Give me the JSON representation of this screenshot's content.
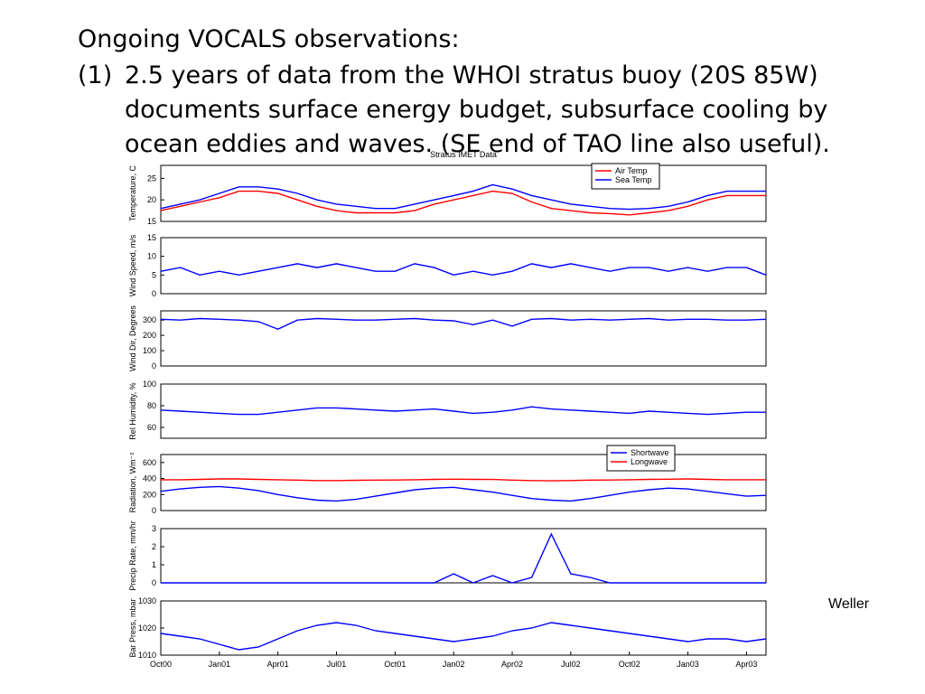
{
  "slide": {
    "heading": "Ongoing VOCALS observations:",
    "item_marker": "(1)",
    "item_lines": [
      "2.5 years of data from the WHOI stratus buoy (20S 85W)",
      "documents surface energy budget, subsurface cooling by",
      "ocean eddies and waves. (SE end of TAO line also useful)."
    ],
    "credit": "Weller"
  },
  "chart_data": [
    {
      "type": "line",
      "title": "Stratus IMET Data",
      "ylabel": "Temperature, C",
      "ylim": [
        15,
        28
      ],
      "yticks": [
        15,
        20,
        25
      ],
      "legend": "upper right",
      "x": [
        "2000-10",
        "2000-11",
        "2000-12",
        "2001-01",
        "2001-02",
        "2001-03",
        "2001-04",
        "2001-05",
        "2001-06",
        "2001-07",
        "2001-08",
        "2001-09",
        "2001-10",
        "2001-11",
        "2001-12",
        "2002-01",
        "2002-02",
        "2002-03",
        "2002-04",
        "2002-05",
        "2002-06",
        "2002-07",
        "2002-08",
        "2002-09",
        "2002-10",
        "2002-11",
        "2002-12",
        "2003-01",
        "2003-02",
        "2003-03",
        "2003-04",
        "2003-05"
      ],
      "xlim": [
        "2000-10",
        "2003-05"
      ],
      "series": [
        {
          "name": "Air Temp",
          "color": "#ff0000",
          "values": [
            17.5,
            18.5,
            19.5,
            20.5,
            22,
            22,
            21.5,
            20,
            18.5,
            17.5,
            17,
            17,
            17,
            17.5,
            19,
            20,
            21,
            22,
            21.5,
            19.5,
            18,
            17.5,
            17,
            16.8,
            16.5,
            17,
            17.5,
            18.5,
            20,
            21,
            21,
            21
          ]
        },
        {
          "name": "Sea Temp",
          "color": "#0000ff",
          "values": [
            18,
            19,
            20,
            21.5,
            23,
            23,
            22.5,
            21.5,
            20,
            19,
            18.5,
            18,
            18,
            19,
            20,
            21,
            22,
            23.5,
            22.5,
            21,
            20,
            19,
            18.5,
            18,
            17.8,
            18,
            18.5,
            19.5,
            21,
            22,
            22,
            22
          ]
        }
      ]
    },
    {
      "type": "line",
      "ylabel": "Wind Speed, m/s",
      "ylim": [
        0,
        15
      ],
      "yticks": [
        0,
        5,
        10,
        15
      ],
      "x": [
        "2000-10",
        "2000-11",
        "2000-12",
        "2001-01",
        "2001-02",
        "2001-03",
        "2001-04",
        "2001-05",
        "2001-06",
        "2001-07",
        "2001-08",
        "2001-09",
        "2001-10",
        "2001-11",
        "2001-12",
        "2002-01",
        "2002-02",
        "2002-03",
        "2002-04",
        "2002-05",
        "2002-06",
        "2002-07",
        "2002-08",
        "2002-09",
        "2002-10",
        "2002-11",
        "2002-12",
        "2003-01",
        "2003-02",
        "2003-03",
        "2003-04",
        "2003-05"
      ],
      "xlim": [
        "2000-10",
        "2003-05"
      ],
      "series": [
        {
          "color": "#0000ff",
          "values": [
            6,
            7,
            5,
            6,
            5,
            6,
            7,
            8,
            7,
            8,
            7,
            6,
            6,
            8,
            7,
            5,
            6,
            5,
            6,
            8,
            7,
            8,
            7,
            6,
            7,
            7,
            6,
            7,
            6,
            7,
            7,
            5
          ]
        }
      ]
    },
    {
      "type": "line",
      "ylabel": "Wind Dir, Degrees",
      "ylim": [
        0,
        360
      ],
      "yticks": [
        0,
        100,
        200,
        300
      ],
      "x": [
        "2000-10",
        "2000-11",
        "2000-12",
        "2001-01",
        "2001-02",
        "2001-03",
        "2001-04",
        "2001-05",
        "2001-06",
        "2001-07",
        "2001-08",
        "2001-09",
        "2001-10",
        "2001-11",
        "2001-12",
        "2002-01",
        "2002-02",
        "2002-03",
        "2002-04",
        "2002-05",
        "2002-06",
        "2002-07",
        "2002-08",
        "2002-09",
        "2002-10",
        "2002-11",
        "2002-12",
        "2003-01",
        "2003-02",
        "2003-03",
        "2003-04",
        "2003-05"
      ],
      "xlim": [
        "2000-10",
        "2003-05"
      ],
      "series": [
        {
          "color": "#0000ff",
          "values": [
            305,
            300,
            310,
            305,
            300,
            290,
            240,
            300,
            310,
            305,
            300,
            300,
            305,
            310,
            300,
            295,
            270,
            300,
            260,
            305,
            310,
            300,
            305,
            300,
            305,
            310,
            300,
            305,
            305,
            300,
            300,
            305
          ]
        }
      ]
    },
    {
      "type": "line",
      "ylabel": "Rel Humidity, %",
      "ylim": [
        50,
        100
      ],
      "yticks": [
        60,
        80,
        100
      ],
      "x": [
        "2000-10",
        "2000-11",
        "2000-12",
        "2001-01",
        "2001-02",
        "2001-03",
        "2001-04",
        "2001-05",
        "2001-06",
        "2001-07",
        "2001-08",
        "2001-09",
        "2001-10",
        "2001-11",
        "2001-12",
        "2002-01",
        "2002-02",
        "2002-03",
        "2002-04",
        "2002-05",
        "2002-06",
        "2002-07",
        "2002-08",
        "2002-09",
        "2002-10",
        "2002-11",
        "2002-12",
        "2003-01",
        "2003-02",
        "2003-03",
        "2003-04",
        "2003-05"
      ],
      "xlim": [
        "2000-10",
        "2003-05"
      ],
      "series": [
        {
          "color": "#0000ff",
          "values": [
            76,
            75,
            74,
            73,
            72,
            72,
            74,
            76,
            78,
            78,
            77,
            76,
            75,
            76,
            77,
            75,
            73,
            74,
            76,
            79,
            77,
            76,
            75,
            74,
            73,
            75,
            74,
            73,
            72,
            73,
            74,
            74
          ]
        }
      ]
    },
    {
      "type": "line",
      "ylabel": "Radiation, Wm⁻²",
      "ylim": [
        0,
        700
      ],
      "yticks": [
        0,
        200,
        400,
        600
      ],
      "legend": "upper right",
      "x": [
        "2000-10",
        "2000-11",
        "2000-12",
        "2001-01",
        "2001-02",
        "2001-03",
        "2001-04",
        "2001-05",
        "2001-06",
        "2001-07",
        "2001-08",
        "2001-09",
        "2001-10",
        "2001-11",
        "2001-12",
        "2002-01",
        "2002-02",
        "2002-03",
        "2002-04",
        "2002-05",
        "2002-06",
        "2002-07",
        "2002-08",
        "2002-09",
        "2002-10",
        "2002-11",
        "2002-12",
        "2003-01",
        "2003-02",
        "2003-03",
        "2003-04",
        "2003-05"
      ],
      "xlim": [
        "2000-10",
        "2003-05"
      ],
      "series": [
        {
          "name": "Shortwave",
          "color": "#0000ff",
          "values": [
            240,
            270,
            290,
            300,
            280,
            250,
            200,
            160,
            130,
            120,
            140,
            180,
            220,
            260,
            280,
            290,
            260,
            230,
            190,
            150,
            130,
            120,
            150,
            190,
            230,
            260,
            280,
            270,
            240,
            210,
            180,
            190
          ]
        },
        {
          "name": "Longwave",
          "color": "#ff0000",
          "values": [
            385,
            385,
            390,
            395,
            395,
            390,
            385,
            380,
            375,
            375,
            378,
            380,
            382,
            385,
            390,
            392,
            390,
            388,
            380,
            375,
            372,
            375,
            380,
            382,
            385,
            390,
            392,
            395,
            390,
            385,
            385,
            385
          ]
        }
      ]
    },
    {
      "type": "line",
      "ylabel": "Precip Rate, mm/hr",
      "ylim": [
        0,
        3
      ],
      "yticks": [
        0,
        1,
        2,
        3
      ],
      "x": [
        "2000-10",
        "2000-11",
        "2000-12",
        "2001-01",
        "2001-02",
        "2001-03",
        "2001-04",
        "2001-05",
        "2001-06",
        "2001-07",
        "2001-08",
        "2001-09",
        "2001-10",
        "2001-11",
        "2001-12",
        "2002-01",
        "2002-02",
        "2002-03",
        "2002-04",
        "2002-05",
        "2002-06",
        "2002-07",
        "2002-08",
        "2002-09",
        "2002-10",
        "2002-11",
        "2002-12",
        "2003-01",
        "2003-02",
        "2003-03",
        "2003-04",
        "2003-05"
      ],
      "xlim": [
        "2000-10",
        "2003-05"
      ],
      "series": [
        {
          "color": "#0000ff",
          "values": [
            0,
            0,
            0,
            0,
            0,
            0,
            0,
            0,
            0,
            0,
            0,
            0,
            0,
            0,
            0,
            0.5,
            0,
            0.4,
            0,
            0.3,
            2.7,
            0.5,
            0.3,
            0,
            0,
            0,
            0,
            0,
            0,
            0,
            0,
            0
          ]
        }
      ]
    },
    {
      "type": "line",
      "ylabel": "Bar Press, mbar",
      "ylim": [
        1010,
        1030
      ],
      "yticks": [
        1010,
        1020,
        1030
      ],
      "x": [
        "2000-10",
        "2000-11",
        "2000-12",
        "2001-01",
        "2001-02",
        "2001-03",
        "2001-04",
        "2001-05",
        "2001-06",
        "2001-07",
        "2001-08",
        "2001-09",
        "2001-10",
        "2001-11",
        "2001-12",
        "2002-01",
        "2002-02",
        "2002-03",
        "2002-04",
        "2002-05",
        "2002-06",
        "2002-07",
        "2002-08",
        "2002-09",
        "2002-10",
        "2002-11",
        "2002-12",
        "2003-01",
        "2003-02",
        "2003-03",
        "2003-04",
        "2003-05"
      ],
      "xlim": [
        "2000-10",
        "2003-05"
      ],
      "xticks": [
        {
          "value": "2000-10",
          "label": "Oct00"
        },
        {
          "value": "2001-01",
          "label": "Jan01"
        },
        {
          "value": "2001-04",
          "label": "Apr01"
        },
        {
          "value": "2001-07",
          "label": "Jul01"
        },
        {
          "value": "2001-10",
          "label": "Oct01"
        },
        {
          "value": "2002-01",
          "label": "Jan02"
        },
        {
          "value": "2002-04",
          "label": "Apr02"
        },
        {
          "value": "2002-07",
          "label": "Jul02"
        },
        {
          "value": "2002-10",
          "label": "Oct02"
        },
        {
          "value": "2003-01",
          "label": "Jan03"
        },
        {
          "value": "2003-04",
          "label": "Apr03"
        }
      ],
      "series": [
        {
          "color": "#0000ff",
          "values": [
            1018,
            1017,
            1016,
            1014,
            1012,
            1013,
            1016,
            1019,
            1021,
            1022,
            1021,
            1019,
            1018,
            1017,
            1016,
            1015,
            1016,
            1017,
            1019,
            1020,
            1022,
            1021,
            1020,
            1019,
            1018,
            1017,
            1016,
            1015,
            1016,
            1016,
            1015,
            1016
          ]
        }
      ]
    }
  ]
}
